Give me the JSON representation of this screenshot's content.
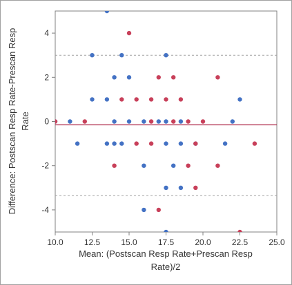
{
  "chart_data": {
    "type": "scatter",
    "title": "",
    "xlabel_lines": [
      "Mean: (Postscan Resp Rate+Prescan Resp",
      "Rate)/2"
    ],
    "ylabel_lines": [
      "Difference: Postscan Resp Rate-Prescan Resp",
      "Rate"
    ],
    "xlim": [
      10.0,
      25.0
    ],
    "ylim": [
      -5.0,
      5.0
    ],
    "x_ticks": [
      10.0,
      12.5,
      15.0,
      17.5,
      20.0,
      22.5,
      25.0
    ],
    "x_tick_labels": [
      "10.0",
      "12.5",
      "15.0",
      "17.5",
      "20.0",
      "22.5",
      "25.0"
    ],
    "y_ticks": [
      -4,
      -2,
      0,
      2,
      4
    ],
    "y_tick_labels": [
      "-4",
      "-2",
      "0",
      "2",
      "4"
    ],
    "reference_lines": {
      "mean_difference": -0.15,
      "upper_limit": 3.0,
      "lower_limit": -3.35,
      "mean_color": "#b03050",
      "limit_color": "#a0a0a0"
    },
    "grid": false,
    "legend": "none",
    "series": [
      {
        "color": "#4472c4",
        "points": [
          [
            10.0,
            0
          ],
          [
            11.0,
            0
          ],
          [
            11.5,
            -1
          ],
          [
            12.5,
            1
          ],
          [
            12.5,
            3
          ],
          [
            13.5,
            5
          ],
          [
            13.5,
            1
          ],
          [
            13.5,
            -1
          ],
          [
            14.0,
            2
          ],
          [
            14.0,
            0
          ],
          [
            14.0,
            -1
          ],
          [
            14.5,
            3
          ],
          [
            14.5,
            -1
          ],
          [
            15.0,
            2
          ],
          [
            15.0,
            0
          ],
          [
            16.0,
            0
          ],
          [
            16.0,
            -2
          ],
          [
            16.0,
            -4
          ],
          [
            17.0,
            0
          ],
          [
            17.5,
            3
          ],
          [
            17.5,
            0
          ],
          [
            17.5,
            -1
          ],
          [
            17.5,
            -3
          ],
          [
            17.5,
            -5
          ],
          [
            18.0,
            -2
          ],
          [
            18.5,
            0
          ],
          [
            18.5,
            -1
          ],
          [
            18.5,
            -3
          ],
          [
            19.5,
            -1
          ],
          [
            21.5,
            -1
          ],
          [
            22.0,
            0
          ],
          [
            22.5,
            1
          ]
        ]
      },
      {
        "color": "#c8405a",
        "points": [
          [
            10.0,
            0
          ],
          [
            12.0,
            0
          ],
          [
            14.0,
            -2
          ],
          [
            14.5,
            1
          ],
          [
            15.0,
            4
          ],
          [
            15.5,
            1
          ],
          [
            15.5,
            -1
          ],
          [
            16.5,
            1
          ],
          [
            16.5,
            0
          ],
          [
            16.5,
            -1
          ],
          [
            17.0,
            2
          ],
          [
            17.0,
            -4
          ],
          [
            17.5,
            1
          ],
          [
            18.0,
            2
          ],
          [
            18.0,
            0
          ],
          [
            18.5,
            1
          ],
          [
            19.0,
            0
          ],
          [
            19.0,
            -2
          ],
          [
            19.5,
            -1
          ],
          [
            19.5,
            -3
          ],
          [
            20.0,
            0
          ],
          [
            21.0,
            2
          ],
          [
            21.0,
            -2
          ],
          [
            22.5,
            -5
          ],
          [
            23.5,
            -1
          ]
        ]
      }
    ]
  }
}
